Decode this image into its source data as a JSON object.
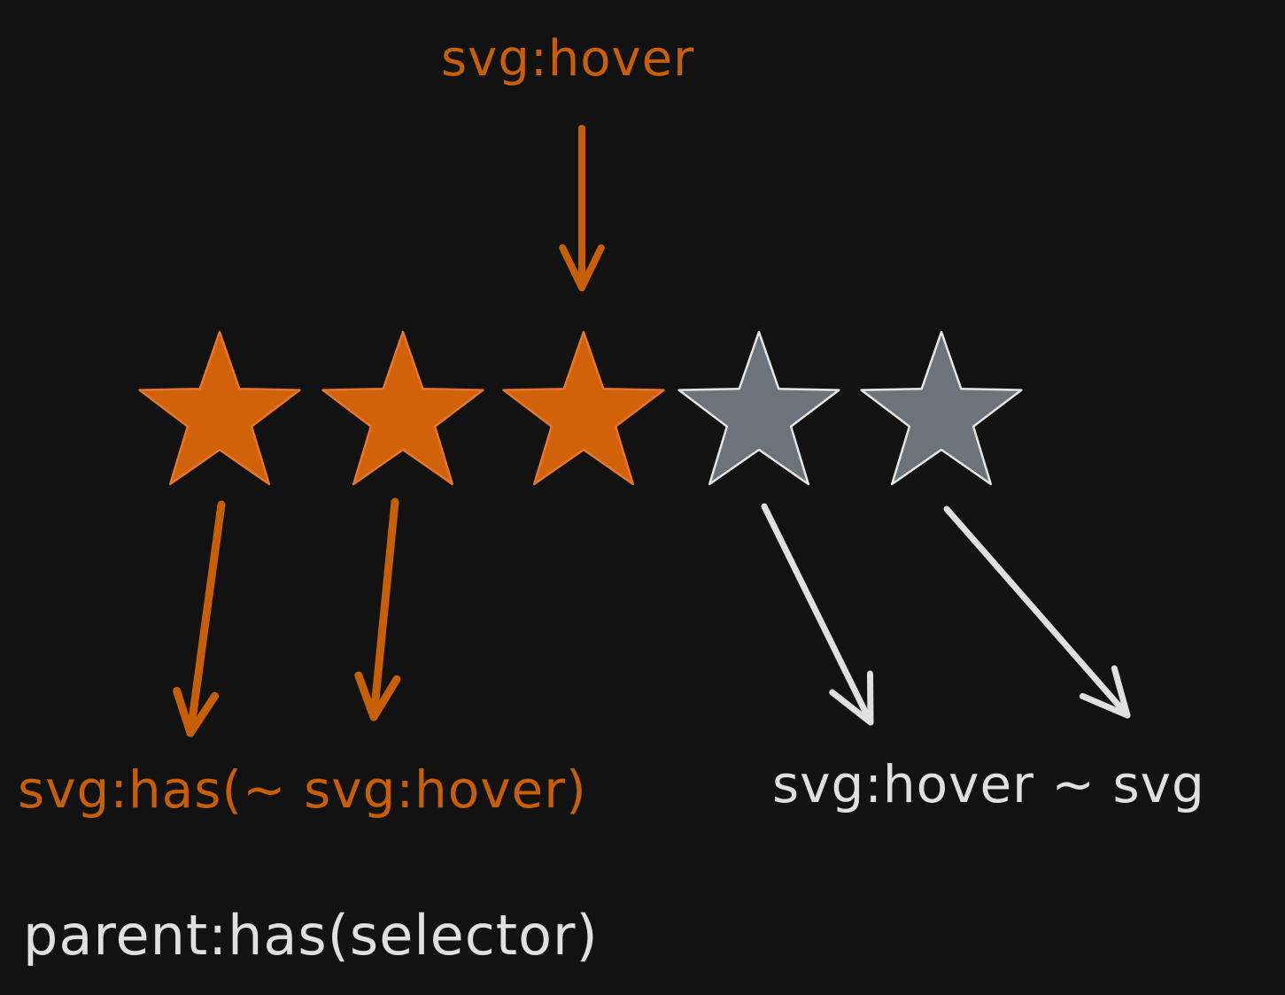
{
  "colors": {
    "background": "#121212",
    "active": "#c85f04",
    "active_fill": "#d2620a",
    "inactive_fill": "#6c737b",
    "inactive_stroke": "#e6e6e6",
    "text_light": "#e0e0e0"
  },
  "labels": {
    "top": "svg:hover",
    "left": "svg:has(~ svg:hover)",
    "right": "svg:hover ~ svg",
    "bottom": "parent:has(selector)"
  },
  "rating": {
    "total": 5,
    "active": 3,
    "hovered_index": 3
  }
}
